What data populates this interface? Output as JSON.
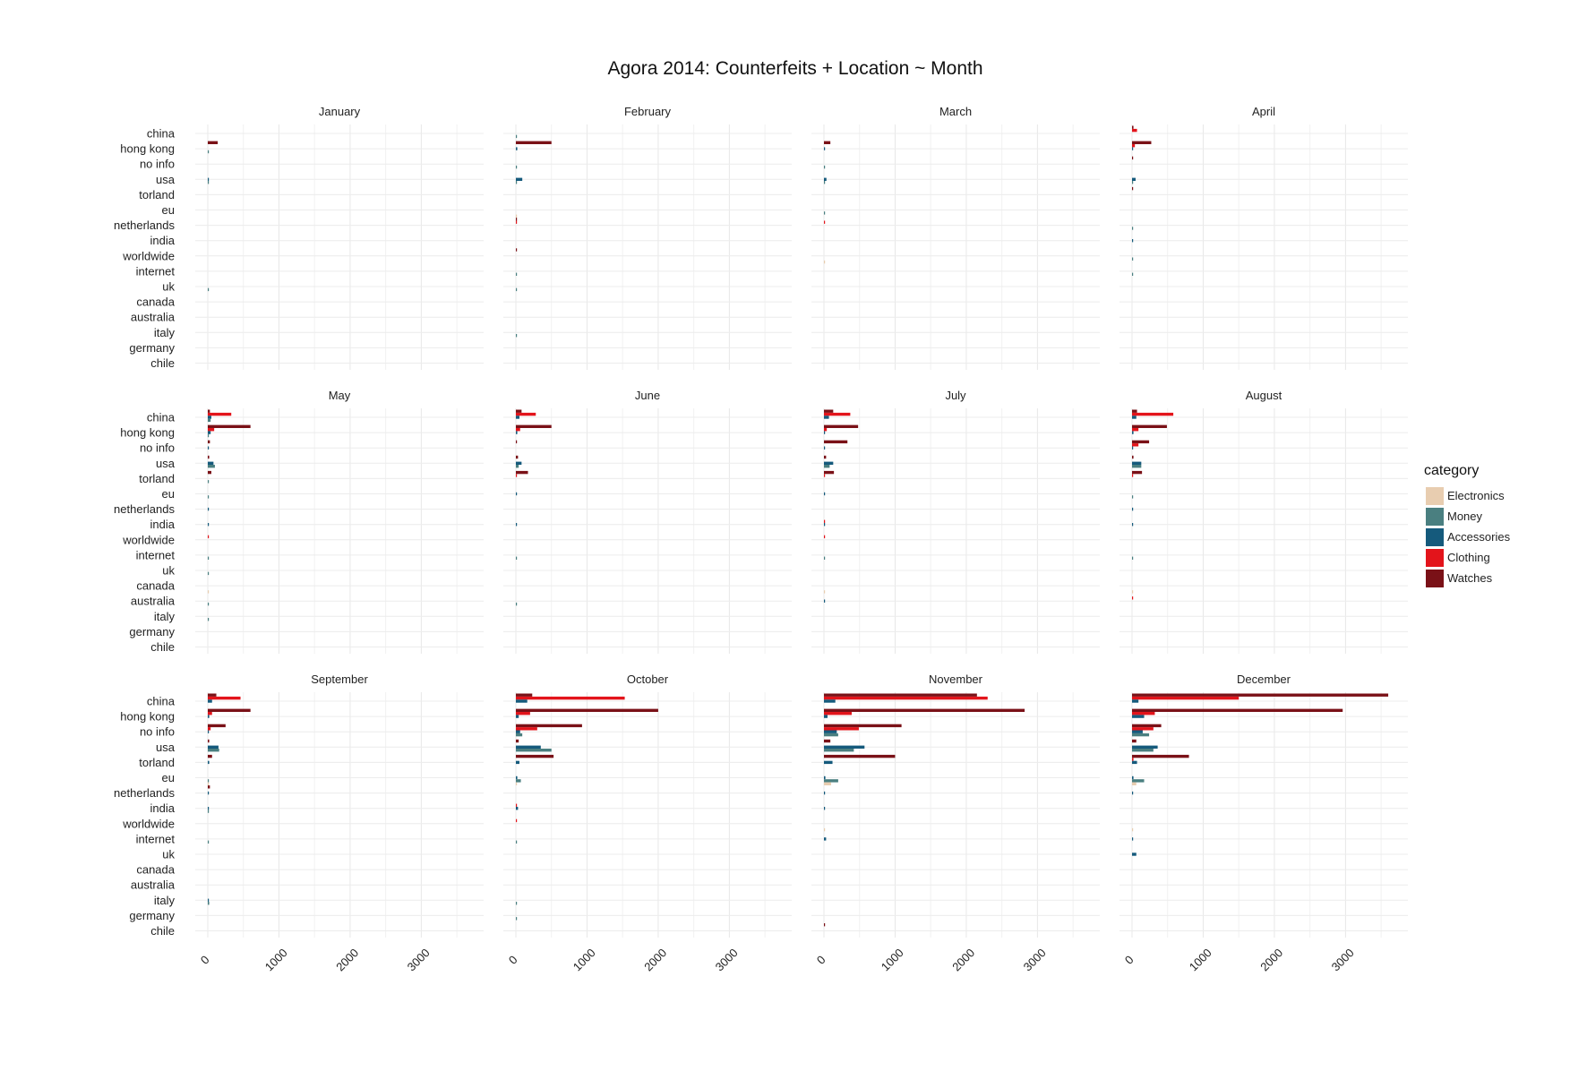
{
  "chart_data": {
    "type": "bar",
    "orientation": "horizontal",
    "title": "Agora 2014: Counterfeits + Location ~ Month",
    "locations": [
      "china",
      "hong kong",
      "no info",
      "usa",
      "torland",
      "eu",
      "netherlands",
      "india",
      "worldwide",
      "internet",
      "uk",
      "canada",
      "australia",
      "italy",
      "germany",
      "chile"
    ],
    "series_order": [
      "Watches",
      "Clothing",
      "Accessories",
      "Money",
      "Electronics"
    ],
    "xlim": [
      0,
      3700
    ],
    "xticks": [
      "0",
      "1000",
      "2000",
      "3000"
    ],
    "grid": true,
    "legend": {
      "title": "category",
      "position": "right",
      "entries": [
        {
          "name": "Electronics",
          "color": "#e8cdb0"
        },
        {
          "name": "Money",
          "color": "#4a7f80"
        },
        {
          "name": "Accessories",
          "color": "#155a7c"
        },
        {
          "name": "Clothing",
          "color": "#e3141b"
        },
        {
          "name": "Watches",
          "color": "#7a1117"
        }
      ]
    },
    "panels": [
      {
        "month": "January",
        "values": {
          "hong kong": {
            "Watches": 140,
            "Money": 5
          },
          "usa": {
            "Accessories": 10,
            "Money": 8
          },
          "uk": {
            "Money": 5
          }
        }
      },
      {
        "month": "February",
        "values": {
          "china": {
            "Money": 5
          },
          "hong kong": {
            "Watches": 500,
            "Accessories": 20
          },
          "no info": {
            "Money": 5
          },
          "usa": {
            "Accessories": 90,
            "Money": 15
          },
          "eu": {
            "Electronics": 8
          },
          "netherlands": {
            "Watches": 5,
            "Clothing": 8
          },
          "worldwide": {
            "Watches": 5
          },
          "internet": {
            "Money": 5
          },
          "uk": {
            "Money": 5
          },
          "italy": {
            "Money": 8
          }
        }
      },
      {
        "month": "March",
        "values": {
          "hong kong": {
            "Watches": 90,
            "Accessories": 10
          },
          "no info": {
            "Money": 5
          },
          "usa": {
            "Accessories": 35,
            "Money": 10
          },
          "eu": {
            "Money": 5
          },
          "netherlands": {
            "Clothing": 8
          },
          "worldwide": {
            "Electronics": 5
          }
        }
      },
      {
        "month": "April",
        "values": {
          "china": {
            "Clothing": 70,
            "Watches": 20
          },
          "hong kong": {
            "Watches": 270,
            "Clothing": 40,
            "Accessories": 15
          },
          "no info": {
            "Watches": 10
          },
          "usa": {
            "Accessories": 50,
            "Money": 10
          },
          "torland": {
            "Watches": 10
          },
          "netherlands": {
            "Money": 5
          },
          "india": {
            "Accessories": 10
          },
          "worldwide": {
            "Money": 5
          },
          "internet": {
            "Money": 5
          }
        }
      },
      {
        "month": "May",
        "values": {
          "china": {
            "Watches": 30,
            "Clothing": 330,
            "Accessories": 50,
            "Money": 40
          },
          "hong kong": {
            "Watches": 600,
            "Clothing": 90,
            "Accessories": 40,
            "Money": 10
          },
          "no info": {
            "Watches": 30,
            "Accessories": 10
          },
          "usa": {
            "Watches": 20,
            "Accessories": 80,
            "Money": 100
          },
          "torland": {
            "Watches": 50,
            "Money": 10
          },
          "eu": {
            "Money": 10
          },
          "netherlands": {
            "Accessories": 10
          },
          "india": {
            "Accessories": 15
          },
          "worldwide": {
            "Clothing": 10
          },
          "internet": {
            "Money": 10
          },
          "uk": {
            "Money": 10
          },
          "canada": {
            "Electronics": 10
          },
          "australia": {
            "Money": 5
          },
          "italy": {
            "Money": 8
          }
        }
      },
      {
        "month": "June",
        "values": {
          "china": {
            "Watches": 80,
            "Clothing": 280,
            "Accessories": 50
          },
          "hong kong": {
            "Watches": 500,
            "Clothing": 60,
            "Accessories": 20
          },
          "no info": {
            "Watches": 15
          },
          "usa": {
            "Watches": 30,
            "Accessories": 80,
            "Money": 40
          },
          "torland": {
            "Watches": 170,
            "Clothing": 10
          },
          "eu": {
            "Accessories": 8
          },
          "india": {
            "Accessories": 10
          },
          "internet": {
            "Money": 8
          },
          "australia": {
            "Money": 5
          }
        }
      },
      {
        "month": "July",
        "values": {
          "china": {
            "Watches": 130,
            "Clothing": 370,
            "Accessories": 70
          },
          "hong kong": {
            "Watches": 480,
            "Clothing": 40,
            "Accessories": 15
          },
          "no info": {
            "Watches": 330,
            "Accessories": 10
          },
          "usa": {
            "Watches": 30,
            "Accessories": 130,
            "Money": 80
          },
          "torland": {
            "Watches": 140,
            "Clothing": 15
          },
          "eu": {
            "Accessories": 8
          },
          "india": {
            "Accessories": 10,
            "Clothing": 8
          },
          "worldwide": {
            "Clothing": 8
          },
          "internet": {
            "Money": 10
          },
          "canada": {
            "Electronics": 8
          },
          "australia": {
            "Accessories": 10
          }
        }
      },
      {
        "month": "August",
        "values": {
          "china": {
            "Watches": 70,
            "Clothing": 580,
            "Accessories": 60
          },
          "hong kong": {
            "Watches": 490,
            "Clothing": 90,
            "Accessories": 20
          },
          "no info": {
            "Watches": 240,
            "Clothing": 90,
            "Accessories": 10
          },
          "usa": {
            "Watches": 20,
            "Accessories": 130,
            "Money": 130
          },
          "torland": {
            "Watches": 140,
            "Clothing": 10
          },
          "eu": {
            "Money": 8
          },
          "netherlands": {
            "Accessories": 8
          },
          "india": {
            "Accessories": 10
          },
          "internet": {
            "Money": 10
          },
          "canada": {
            "Electronics": 8
          },
          "australia": {
            "Clothing": 8
          }
        }
      },
      {
        "month": "September",
        "values": {
          "china": {
            "Watches": 120,
            "Clothing": 460,
            "Accessories": 60
          },
          "hong kong": {
            "Watches": 600,
            "Clothing": 60,
            "Accessories": 20
          },
          "no info": {
            "Watches": 250,
            "Clothing": 40,
            "Accessories": 10
          },
          "usa": {
            "Watches": 20,
            "Accessories": 150,
            "Money": 160
          },
          "torland": {
            "Watches": 60,
            "Accessories": 20
          },
          "eu": {
            "Money": 10,
            "Electronics": 8
          },
          "netherlands": {
            "Watches": 30,
            "Accessories": 10
          },
          "india": {
            "Accessories": 15,
            "Money": 8
          },
          "internet": {
            "Money": 10
          },
          "italy": {
            "Money": 20,
            "Accessories": 8
          }
        }
      },
      {
        "month": "October",
        "values": {
          "china": {
            "Watches": 230,
            "Clothing": 1530,
            "Accessories": 160
          },
          "hong kong": {
            "Watches": 2000,
            "Clothing": 200,
            "Accessories": 40
          },
          "no info": {
            "Watches": 930,
            "Clothing": 300,
            "Accessories": 60,
            "Money": 90
          },
          "usa": {
            "Watches": 40,
            "Accessories": 350,
            "Money": 500
          },
          "torland": {
            "Watches": 530,
            "Accessories": 50
          },
          "eu": {
            "Accessories": 20,
            "Money": 70,
            "Electronics": 10
          },
          "india": {
            "Clothing": 10,
            "Accessories": 30
          },
          "worldwide": {
            "Clothing": 10
          },
          "internet": {
            "Money": 10
          },
          "italy": {
            "Money": 15
          },
          "germany": {
            "Money": 8
          }
        }
      },
      {
        "month": "November",
        "values": {
          "china": {
            "Watches": 2150,
            "Clothing": 2300,
            "Accessories": 160
          },
          "hong kong": {
            "Watches": 2820,
            "Clothing": 390,
            "Accessories": 50
          },
          "no info": {
            "Watches": 1090,
            "Clothing": 490,
            "Accessories": 180,
            "Money": 200
          },
          "usa": {
            "Watches": 90,
            "Accessories": 570,
            "Money": 420
          },
          "torland": {
            "Watches": 1000,
            "Accessories": 120
          },
          "eu": {
            "Accessories": 20,
            "Money": 200,
            "Electronics": 100
          },
          "netherlands": {
            "Accessories": 15
          },
          "india": {
            "Accessories": 15
          },
          "worldwide": {
            "Electronics": 10
          },
          "internet": {
            "Accessories": 30
          },
          "chile": {
            "Watches": 10
          }
        }
      },
      {
        "month": "December",
        "values": {
          "china": {
            "Watches": 3600,
            "Clothing": 1500,
            "Accessories": 90
          },
          "hong kong": {
            "Watches": 2960,
            "Clothing": 320,
            "Accessories": 170
          },
          "no info": {
            "Watches": 410,
            "Clothing": 300,
            "Accessories": 150,
            "Money": 240
          },
          "usa": {
            "Watches": 60,
            "Accessories": 360,
            "Money": 300
          },
          "torland": {
            "Watches": 800,
            "Clothing": 20,
            "Accessories": 70
          },
          "eu": {
            "Accessories": 20,
            "Money": 170,
            "Electronics": 60
          },
          "netherlands": {
            "Accessories": 15
          },
          "worldwide": {
            "Electronics": 10
          },
          "internet": {
            "Accessories": 10
          },
          "uk": {
            "Accessories": 60
          }
        }
      }
    ]
  }
}
